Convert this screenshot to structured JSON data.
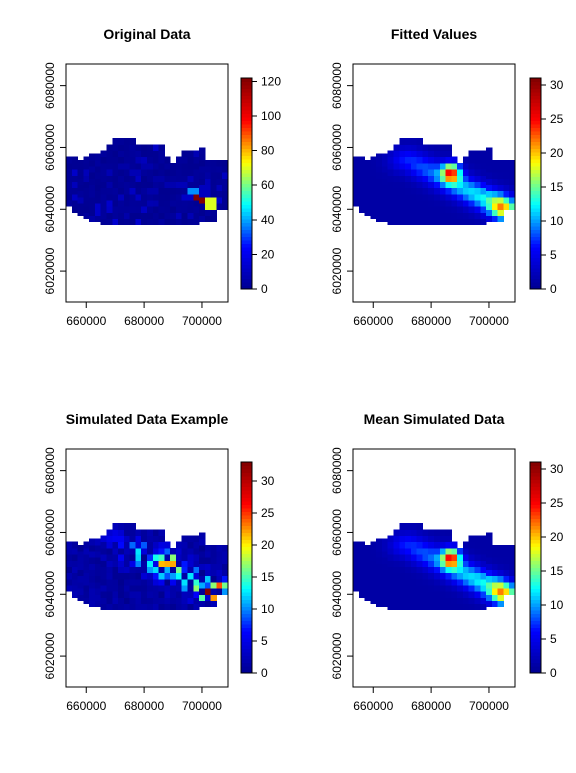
{
  "chart_data": [
    {
      "type": "heatmap",
      "title": "Original Data",
      "x_ticks": [
        660000,
        680000,
        700000
      ],
      "y_ticks": [
        6020000,
        6040000,
        6060000,
        6080000
      ],
      "xlim": [
        653000,
        709000
      ],
      "ylim": [
        6010000,
        6087000
      ],
      "legend_ticks": [
        0,
        20,
        40,
        60,
        80,
        100,
        120
      ],
      "zlim": [
        0,
        122
      ],
      "colormap": [
        "#00008F",
        "#0000FF",
        "#00FFFF",
        "#FFFF00",
        "#FF0000",
        "#800000"
      ],
      "grid": false,
      "legend_position": "right",
      "region_note": "non-zero cells only",
      "cells": [
        [
          673000,
          6054000,
          5
        ],
        [
          677000,
          6052000,
          8
        ],
        [
          681000,
          6054000,
          6
        ],
        [
          685000,
          6050000,
          5
        ],
        [
          689000,
          6048000,
          7
        ],
        [
          693000,
          6048000,
          9
        ],
        [
          697000,
          6046000,
          38
        ],
        [
          699000,
          6044000,
          122
        ],
        [
          701000,
          6046000,
          10
        ],
        [
          703000,
          6042000,
          70
        ],
        [
          695000,
          6044000,
          12
        ],
        [
          683000,
          6046000,
          6
        ]
      ]
    },
    {
      "type": "heatmap",
      "title": "Fitted Values",
      "x_ticks": [
        660000,
        680000,
        700000
      ],
      "y_ticks": [
        6020000,
        6040000,
        6060000,
        6080000
      ],
      "xlim": [
        653000,
        709000
      ],
      "ylim": [
        6010000,
        6087000
      ],
      "legend_ticks": [
        0,
        5,
        10,
        15,
        20,
        25,
        30
      ],
      "zlim": [
        0,
        31
      ],
      "colormap": [
        "#00008F",
        "#0000FF",
        "#00FFFF",
        "#FFFF00",
        "#FF0000",
        "#800000"
      ],
      "grid": false,
      "legend_position": "right",
      "hotspot": {
        "x": 687000,
        "y": 6052000,
        "value": 31
      }
    },
    {
      "type": "heatmap",
      "title": "Simulated Data Example",
      "x_ticks": [
        660000,
        680000,
        700000
      ],
      "y_ticks": [
        6020000,
        6040000,
        6060000,
        6080000
      ],
      "xlim": [
        653000,
        709000
      ],
      "ylim": [
        6010000,
        6087000
      ],
      "legend_ticks": [
        0,
        5,
        10,
        15,
        20,
        25,
        30
      ],
      "zlim": [
        0,
        33
      ],
      "colormap": [
        "#00008F",
        "#0000FF",
        "#00FFFF",
        "#FFFF00",
        "#FF0000",
        "#800000"
      ],
      "grid": false,
      "legend_position": "right"
    },
    {
      "type": "heatmap",
      "title": "Mean Simulated Data",
      "x_ticks": [
        660000,
        680000,
        700000
      ],
      "y_ticks": [
        6020000,
        6040000,
        6060000,
        6080000
      ],
      "xlim": [
        653000,
        709000
      ],
      "ylim": [
        6010000,
        6087000
      ],
      "legend_ticks": [
        0,
        5,
        10,
        15,
        20,
        25,
        30
      ],
      "zlim": [
        0,
        31
      ],
      "colormap": [
        "#00008F",
        "#0000FF",
        "#00FFFF",
        "#FFFF00",
        "#FF0000",
        "#800000"
      ],
      "grid": false,
      "legend_position": "right",
      "hotspot": {
        "x": 687000,
        "y": 6052000,
        "value": 31
      }
    }
  ]
}
